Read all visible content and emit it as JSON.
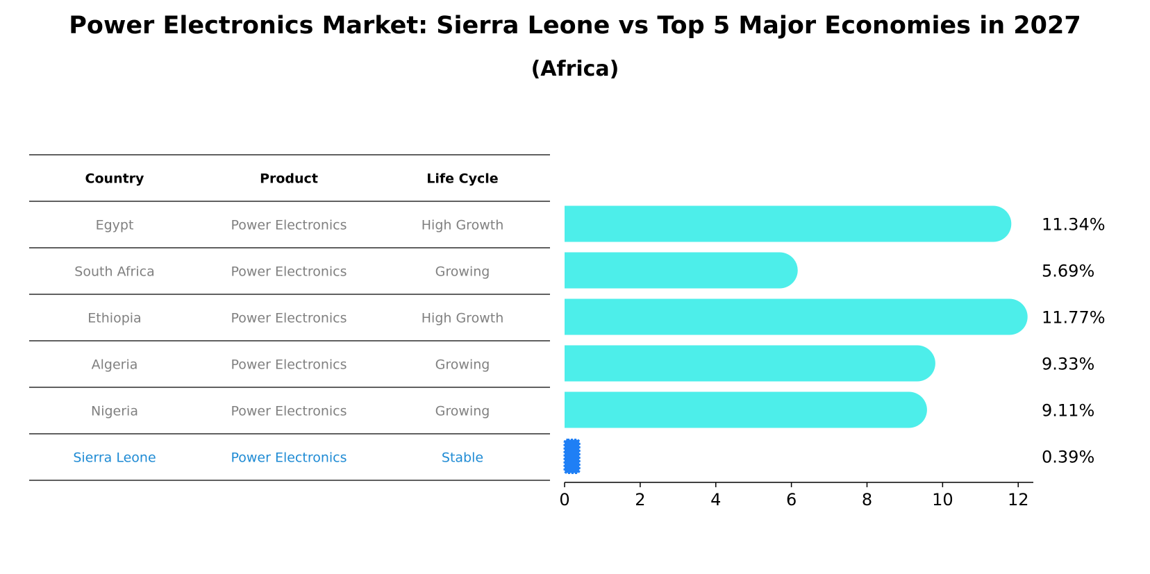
{
  "chart_data": {
    "type": "bar",
    "orientation": "horizontal",
    "title": "Power Electronics Market: Sierra Leone vs Top 5 Major Economies in 2027",
    "subtitle": "(Africa)",
    "table": {
      "columns": [
        "Country",
        "Product",
        "Life Cycle"
      ],
      "rows": [
        [
          "Egypt",
          "Power Electronics",
          "High Growth"
        ],
        [
          "South Africa",
          "Power Electronics",
          "Growing"
        ],
        [
          "Ethiopia",
          "Power Electronics",
          "High Growth"
        ],
        [
          "Algeria",
          "Power Electronics",
          "Growing"
        ],
        [
          "Nigeria",
          "Power Electronics",
          "Growing"
        ],
        [
          "Sierra Leone",
          "Power Electronics",
          "Stable"
        ]
      ],
      "highlight_row": 5
    },
    "categories": [
      "Egypt",
      "South Africa",
      "Ethiopia",
      "Algeria",
      "Nigeria",
      "Sierra Leone"
    ],
    "values": [
      11.34,
      5.69,
      11.77,
      9.33,
      9.11,
      0.39
    ],
    "value_labels": [
      "11.34%",
      "5.69%",
      "11.77%",
      "9.33%",
      "9.11%",
      "0.39%"
    ],
    "xlim": [
      0,
      12.4
    ],
    "xticks": [
      0,
      2,
      4,
      6,
      8,
      10,
      12
    ],
    "xtick_labels": [
      "0",
      "2",
      "4",
      "6",
      "8",
      "10",
      "12"
    ],
    "grid": false,
    "colors": {
      "bar": "#4DEEEA",
      "highlight_bar": "#1F7FF5",
      "table_text": "#808080",
      "highlight_text": "#1F8BD4",
      "header_text": "#000000",
      "rule": "#000000"
    }
  }
}
